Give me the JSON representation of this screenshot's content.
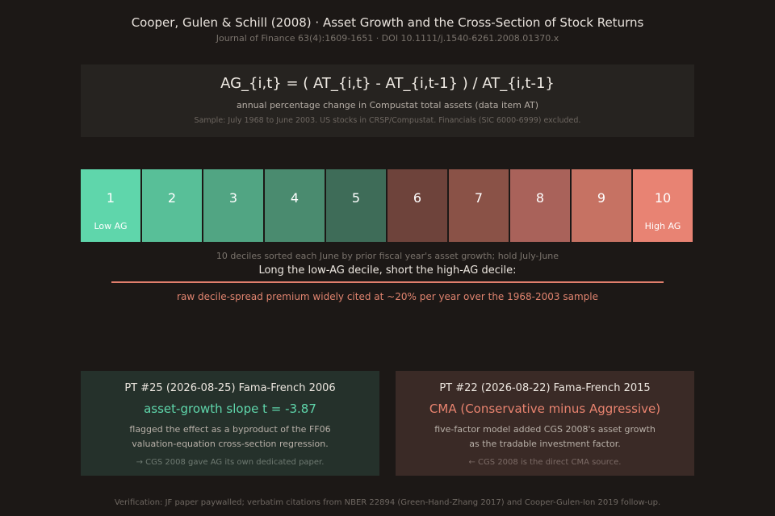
{
  "header": {
    "title": "Cooper, Gulen & Schill (2008) · Asset Growth and the Cross-Section of Stock Returns",
    "subtitle": "Journal of Finance 63(4):1609-1651 · DOI 10.1111/j.1540-6261.2008.01370.x"
  },
  "formula": {
    "expression": "AG_{i,t} = ( AT_{i,t} - AT_{i,t-1} ) / AT_{i,t-1}",
    "description": "annual percentage change in Compustat total assets (data item AT)",
    "sample": "Sample: July 1968 to June 2003. US stocks in CRSP/Compustat. Financials (SIC 6000-6999) excluded."
  },
  "deciles": {
    "items": [
      {
        "number": "1",
        "label": "Low AG",
        "color": "#5fd6ab"
      },
      {
        "number": "2",
        "label": "",
        "color": "#58bf98"
      },
      {
        "number": "3",
        "label": "",
        "color": "#51a583"
      },
      {
        "number": "4",
        "label": "",
        "color": "#4a8b6f"
      },
      {
        "number": "5",
        "label": "",
        "color": "#3e6c58"
      },
      {
        "number": "6",
        "label": "",
        "color": "#6e433b"
      },
      {
        "number": "7",
        "label": "",
        "color": "#8a5247"
      },
      {
        "number": "8",
        "label": "",
        "color": "#a9625a"
      },
      {
        "number": "9",
        "label": "",
        "color": "#c67263"
      },
      {
        "number": "10",
        "label": "High AG",
        "color": "#e88373"
      }
    ],
    "caption": "10 deciles sorted each June by prior fiscal year's asset growth; hold July-June"
  },
  "strategy": {
    "long_short": "Long the low-AG decile, short the high-AG decile:",
    "premium": "raw decile-spread premium widely cited at ~20% per year over the 1968-2003 sample",
    "line_color": "#e07e6c"
  },
  "cards": {
    "left": {
      "title": "PT #25 (2026-08-25) Fama-French 2006",
      "headline": "asset-growth slope t = -3.87",
      "headline_color": "#5fd6ab",
      "body": "flagged the effect as a byproduct of the FF06 valuation-equation cross-section regression.",
      "note": "→ CGS 2008 gave AG its own dedicated paper."
    },
    "right": {
      "title": "PT #22 (2026-08-22) Fama-French 2015",
      "headline": "CMA (Conservative minus Aggressive)",
      "headline_color": "#e8836f",
      "body": "five-factor model added CGS 2008's asset growth as the tradable investment factor.",
      "note": "← CGS 2008 is the direct CMA source."
    }
  },
  "footer": {
    "text": "Verification: JF paper paywalled; verbatim citations from NBER 22894 (Green-Hand-Zhang 2017) and Cooper-Gulen-Ion 2019 follow-up."
  }
}
